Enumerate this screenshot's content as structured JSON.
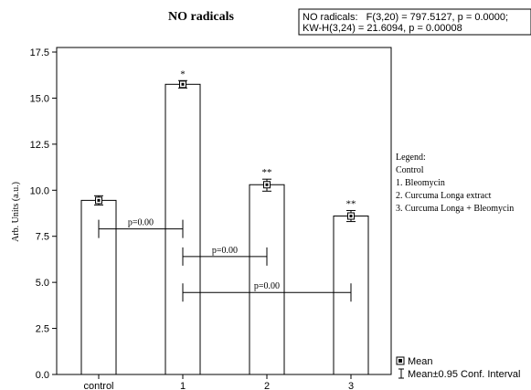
{
  "chart_data": {
    "type": "bar",
    "title": "NO radicals",
    "stats_line1": "NO radicals:   F(3,20) = 797.5127, p = 0.0000;",
    "stats_line2": "KW-H(3,24) = 21.6094, p = 0.00008",
    "ylabel": "Arb. Units (a.u.)",
    "xlabel": "",
    "ylim": [
      0,
      17.5
    ],
    "yticks": [
      0.0,
      2.5,
      5.0,
      7.5,
      10.0,
      12.5,
      15.0,
      17.5
    ],
    "ytick_labels": [
      "0.0",
      "2.5",
      "5.0",
      "7.5",
      "10.0",
      "12.5",
      "15.0",
      "17.5"
    ],
    "categories": [
      "control",
      "1",
      "2",
      "3"
    ],
    "series": [
      {
        "values": [
          9.45,
          15.75,
          10.3,
          8.6
        ],
        "ci_low": [
          9.2,
          15.55,
          9.95,
          8.3
        ],
        "ci_high": [
          9.7,
          15.95,
          10.6,
          8.9
        ]
      }
    ],
    "significance": [
      "",
      "*",
      "**",
      "**"
    ],
    "comparisons": [
      {
        "from": "control",
        "to": "1",
        "y": 7.9,
        "label": "p=0.00"
      },
      {
        "from": "1",
        "to": "2",
        "y": 6.4,
        "label": "p=0.00"
      },
      {
        "from": "1",
        "to": "3",
        "y": 4.45,
        "label": "p=0.00"
      }
    ],
    "grid": false,
    "legend_placement": "right",
    "legend": {
      "title": "Legend:",
      "items": [
        "Control",
        "1. Bleomycin",
        "2. Curcuma Longa extract",
        "3. Curcuma Longa + Bleomycin"
      ]
    },
    "key": {
      "mean": "Mean",
      "ci": "Mean±0.95 Conf. Interval"
    },
    "colors": {
      "bar_fill": "#ffffff",
      "stroke": "#000000"
    }
  }
}
